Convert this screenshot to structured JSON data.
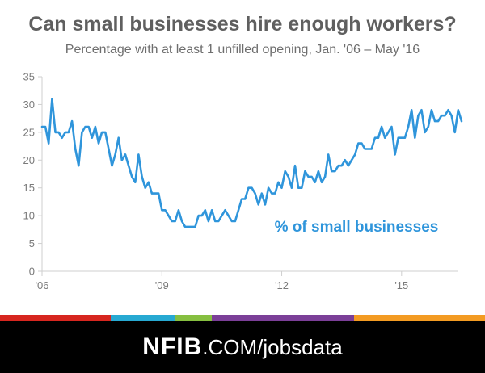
{
  "header": {
    "title": "Can small businesses hire enough workers?",
    "subtitle": "Percentage with at least 1 unfilled opening, Jan. '06 – May '16"
  },
  "chart_data": {
    "type": "line",
    "title": "Can small businesses hire enough workers?",
    "subtitle": "Percentage with at least 1 unfilled opening, Jan. '06 – May '16",
    "xlabel": "",
    "ylabel": "",
    "ylim": [
      0,
      35
    ],
    "yticks": [
      0,
      5,
      10,
      15,
      20,
      25,
      30,
      35
    ],
    "xlim": [
      2006.0,
      2016.42
    ],
    "xticks": [
      {
        "value": 2006,
        "label": "'06"
      },
      {
        "value": 2009,
        "label": "'09"
      },
      {
        "value": 2012,
        "label": "'12"
      },
      {
        "value": 2015,
        "label": "'15"
      }
    ],
    "grid": false,
    "line_color": "#2f95db",
    "annotation": "% of small businesses",
    "series": [
      {
        "name": "% of small businesses",
        "start": "2006-01",
        "frequency": "monthly",
        "values": [
          26,
          26,
          23,
          31,
          25,
          25,
          24,
          25,
          25,
          27,
          22,
          19,
          25,
          26,
          26,
          24,
          26,
          23,
          25,
          25,
          22,
          19,
          21,
          24,
          20,
          21,
          19,
          17,
          16,
          21,
          17,
          15,
          16,
          14,
          14,
          14,
          11,
          11,
          10,
          9,
          9,
          11,
          9,
          8,
          8,
          8,
          8,
          10,
          10,
          11,
          9,
          11,
          9,
          9,
          10,
          11,
          10,
          9,
          9,
          11,
          13,
          13,
          15,
          15,
          14,
          12,
          14,
          12,
          15,
          14,
          14,
          16,
          15,
          18,
          17,
          15,
          19,
          15,
          15,
          18,
          17,
          17,
          16,
          18,
          16,
          17,
          21,
          18,
          18,
          19,
          19,
          20,
          19,
          20,
          21,
          23,
          23,
          22,
          22,
          22,
          24,
          24,
          26,
          24,
          25,
          26,
          21,
          24,
          24,
          24,
          26,
          29,
          24,
          28,
          29,
          25,
          26,
          29,
          27,
          27,
          28,
          28,
          29,
          28,
          25,
          29,
          27
        ]
      }
    ]
  },
  "footer": {
    "brand_bold": "NFIB",
    "brand_rest": ".COM/jobsdata",
    "stripe_colors": [
      "#d7261f",
      "#27a9d2",
      "#86bf40",
      "#7b3f98",
      "#f39b22"
    ]
  }
}
